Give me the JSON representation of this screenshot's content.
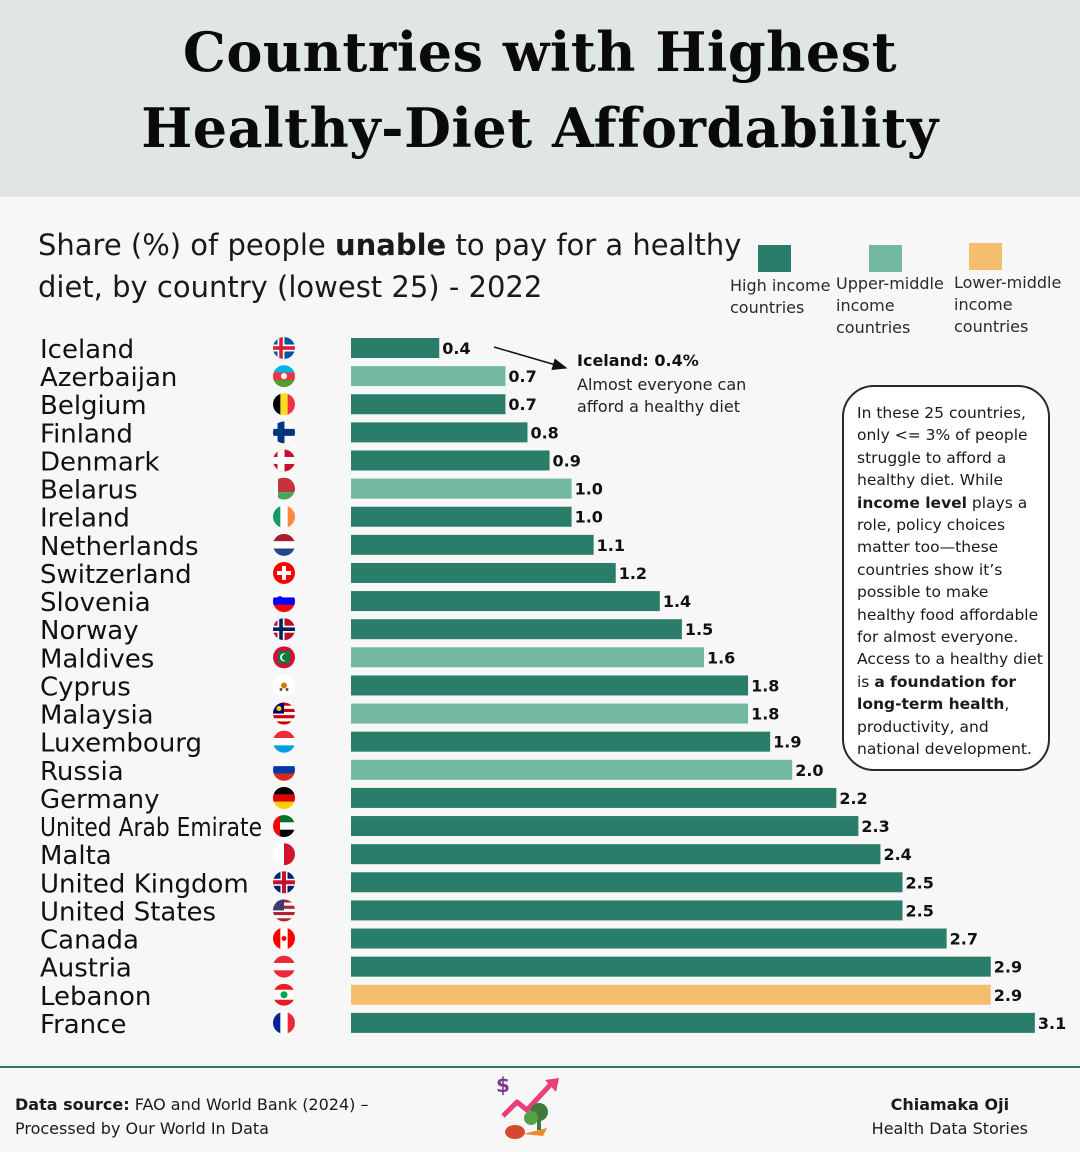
{
  "header": {
    "title_line1": "Countries with Highest",
    "title_line2": "Healthy-Diet Affordability"
  },
  "subtitle": {
    "line1_pre": "Share (%) of people ",
    "line1_bold": "unable",
    "line1_post": " to pay for a healthy",
    "line2": "diet, by country (lowest 25) - 2022"
  },
  "legend": [
    {
      "lines": [
        "High income",
        "countries"
      ],
      "color": "#2a7d68"
    },
    {
      "lines": [
        "Upper-middle",
        "income",
        "countries"
      ],
      "color": "#72b9a0"
    },
    {
      "lines": [
        "Lower-middle",
        "income",
        "countries"
      ],
      "color": "#f5bd6e"
    }
  ],
  "annotation": {
    "title": "Iceland: 0.4%",
    "text": "Almost everyone can afford a healthy diet"
  },
  "note": {
    "part1": "In these 25 countries, only <= 3% of people struggle to afford a healthy diet. While ",
    "bold1": "income level",
    "part2": " plays a role, policy choices matter too—these countries show it’s possible to make healthy food affordable for almost everyone. Access to a healthy diet is ",
    "bold2": "a foundation for long-term health",
    "part3": ", productivity, and national development."
  },
  "chart_data": {
    "type": "bar",
    "orientation": "horizontal",
    "title": "Share (%) of people unable to pay for a healthy diet, by country (lowest 25) - 2022",
    "xlabel": "",
    "ylabel": "",
    "xlim": [
      0,
      3.1
    ],
    "grid": false,
    "legend_position": "top-right",
    "categories": [
      "Iceland",
      "Azerbaijan",
      "Belgium",
      "Finland",
      "Denmark",
      "Belarus",
      "Ireland",
      "Netherlands",
      "Switzerland",
      "Slovenia",
      "Norway",
      "Maldives",
      "Cyprus",
      "Malaysia",
      "Luxembourg",
      "Russia",
      "Germany",
      "United Arab Emirate",
      "Malta",
      "United Kingdom",
      "United States",
      "Canada",
      "Austria",
      "Lebanon",
      "France"
    ],
    "values": [
      0.4,
      0.7,
      0.7,
      0.8,
      0.9,
      1.0,
      1.0,
      1.1,
      1.2,
      1.4,
      1.5,
      1.6,
      1.8,
      1.8,
      1.9,
      2.0,
      2.2,
      2.3,
      2.4,
      2.5,
      2.5,
      2.7,
      2.9,
      2.9,
      3.1
    ],
    "value_labels": [
      "0.4",
      "0.7",
      "0.7",
      "0.8",
      "0.9",
      "1.0",
      "1.0",
      "1.1",
      "1.2",
      "1.4",
      "1.5",
      "1.6",
      "1.8",
      "1.8",
      "1.9",
      "2.0",
      "2.2",
      "2.3",
      "2.4",
      "2.5",
      "2.5",
      "2.7",
      "2.9",
      "2.9",
      "3.1"
    ],
    "income_group": [
      "High income",
      "Upper-middle income",
      "High income",
      "High income",
      "High income",
      "Upper-middle income",
      "High income",
      "High income",
      "High income",
      "High income",
      "High income",
      "Upper-middle income",
      "High income",
      "Upper-middle income",
      "High income",
      "Upper-middle income",
      "High income",
      "High income",
      "High income",
      "High income",
      "High income",
      "High income",
      "High income",
      "Lower-middle income",
      "High income"
    ],
    "flags": [
      "flag-iceland",
      "flag-azerbaijan",
      "flag-belgium",
      "flag-finland",
      "flag-denmark",
      "flag-belarus",
      "flag-ireland",
      "flag-netherlands",
      "flag-switzerland",
      "flag-slovenia",
      "flag-norway",
      "flag-maldives",
      "flag-cyprus",
      "flag-malaysia",
      "flag-luxembourg",
      "flag-russia",
      "flag-germany",
      "flag-uae",
      "flag-malta",
      "flag-united-kingdom",
      "flag-united-states",
      "flag-canada",
      "flag-austria",
      "flag-lebanon",
      "flag-france"
    ]
  },
  "colors": {
    "High income": "#2a7d68",
    "Upper-middle income": "#72b9a0",
    "Lower-middle income": "#f5bd6e"
  },
  "footer": {
    "source_label": "Data source:",
    "source_text1": " FAO and World Bank (2024) –",
    "source_text2": "Processed by Our World In Data",
    "author": "Chiamaka Oji",
    "org": "Health Data Stories",
    "logo_icon": "healthy-food-trend-icon"
  }
}
